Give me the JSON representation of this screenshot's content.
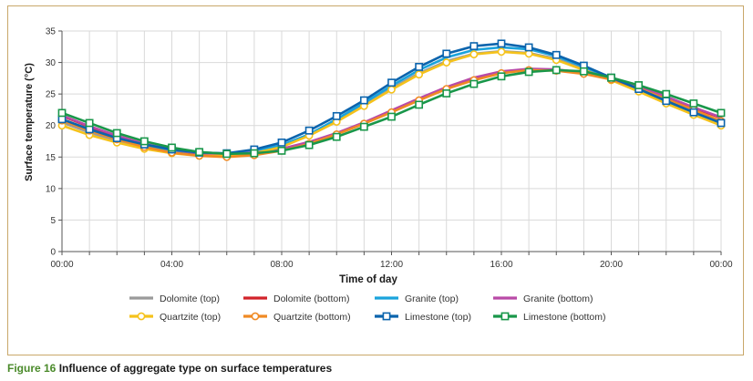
{
  "caption": {
    "figure_label": "Figure 16",
    "text": "Influence of aggregate type on surface temperatures"
  },
  "chart_data": {
    "type": "line",
    "title": "",
    "xlabel": "Time of day",
    "ylabel": "Surface temperature (°C)",
    "ylim": [
      0,
      35
    ],
    "yticks": [
      0,
      5,
      10,
      15,
      20,
      25,
      30,
      35
    ],
    "xlim": [
      0,
      24
    ],
    "xticks": [
      0,
      4,
      8,
      12,
      16,
      20,
      24
    ],
    "xtick_labels": [
      "00:00",
      "04:00",
      "08:00",
      "12:00",
      "16:00",
      "20:00",
      "00:00"
    ],
    "grid": true,
    "x": [
      0,
      1,
      2,
      3,
      4,
      5,
      6,
      7,
      8,
      9,
      10,
      11,
      12,
      13,
      14,
      15,
      16,
      17,
      18,
      19,
      20,
      21,
      22,
      23,
      24
    ],
    "series": [
      {
        "name": "Dolomite (top)",
        "color": "#9a9a9a",
        "marker": "none",
        "values": [
          20.5,
          18.9,
          17.6,
          16.6,
          15.9,
          15.5,
          15.4,
          15.8,
          16.8,
          18.4,
          20.7,
          23.2,
          25.9,
          28.3,
          30.2,
          31.4,
          31.8,
          31.5,
          30.6,
          29.0,
          27.5,
          25.7,
          23.8,
          21.9,
          20.2
        ]
      },
      {
        "name": "Dolomite (bottom)",
        "color": "#d2232a",
        "marker": "none",
        "values": [
          21.5,
          19.8,
          18.3,
          17.0,
          16.1,
          15.5,
          15.3,
          15.6,
          16.2,
          17.3,
          18.7,
          20.4,
          22.3,
          24.2,
          26.0,
          27.5,
          28.5,
          28.9,
          28.8,
          28.3,
          27.5,
          26.1,
          24.5,
          22.8,
          21.2
        ]
      },
      {
        "name": "Granite (top)",
        "color": "#1aa3dc",
        "marker": "none",
        "values": [
          21.0,
          19.4,
          18.0,
          16.9,
          16.1,
          15.6,
          15.5,
          15.9,
          16.9,
          18.6,
          21.0,
          23.6,
          26.3,
          28.8,
          30.8,
          32.0,
          32.4,
          32.1,
          31.0,
          29.3,
          27.6,
          25.8,
          23.9,
          22.0,
          20.5
        ]
      },
      {
        "name": "Granite (bottom)",
        "color": "#b94aa7",
        "marker": "none",
        "values": [
          21.6,
          19.9,
          18.4,
          17.1,
          16.2,
          15.6,
          15.4,
          15.7,
          16.3,
          17.4,
          18.8,
          20.5,
          22.4,
          24.3,
          26.1,
          27.6,
          28.6,
          29.0,
          28.9,
          28.4,
          27.6,
          26.2,
          24.6,
          22.9,
          21.3
        ]
      },
      {
        "name": "Quartzite (top)",
        "color": "#f5c21b",
        "marker": "circle",
        "values": [
          20.0,
          18.5,
          17.3,
          16.3,
          15.6,
          15.2,
          15.2,
          15.6,
          16.6,
          18.4,
          20.6,
          23.1,
          25.7,
          28.1,
          30.0,
          31.3,
          31.7,
          31.4,
          30.4,
          28.8,
          27.2,
          25.4,
          23.5,
          21.7,
          20.0
        ]
      },
      {
        "name": "Quartzite (bottom)",
        "color": "#f08a24",
        "marker": "circle",
        "values": [
          20.8,
          19.2,
          17.8,
          16.6,
          15.7,
          15.2,
          15.0,
          15.3,
          16.0,
          17.1,
          18.6,
          20.3,
          22.1,
          24.0,
          25.8,
          27.2,
          28.3,
          28.8,
          28.7,
          28.2,
          27.3,
          25.9,
          24.2,
          22.5,
          20.7
        ]
      },
      {
        "name": "Limestone (top)",
        "color": "#0b64ad",
        "marker": "square",
        "values": [
          21.0,
          19.4,
          18.0,
          17.0,
          16.2,
          15.7,
          15.6,
          16.2,
          17.3,
          19.2,
          21.5,
          24.0,
          26.8,
          29.3,
          31.4,
          32.6,
          33.0,
          32.4,
          31.2,
          29.5,
          27.6,
          25.8,
          23.9,
          22.1,
          20.4
        ]
      },
      {
        "name": "Limestone (bottom)",
        "color": "#19974a",
        "marker": "square",
        "values": [
          22.0,
          20.4,
          18.8,
          17.5,
          16.5,
          15.8,
          15.5,
          15.6,
          16.0,
          16.9,
          18.2,
          19.8,
          21.4,
          23.3,
          25.1,
          26.6,
          27.8,
          28.5,
          28.8,
          28.6,
          27.6,
          26.4,
          25.0,
          23.5,
          22.0
        ]
      }
    ]
  }
}
